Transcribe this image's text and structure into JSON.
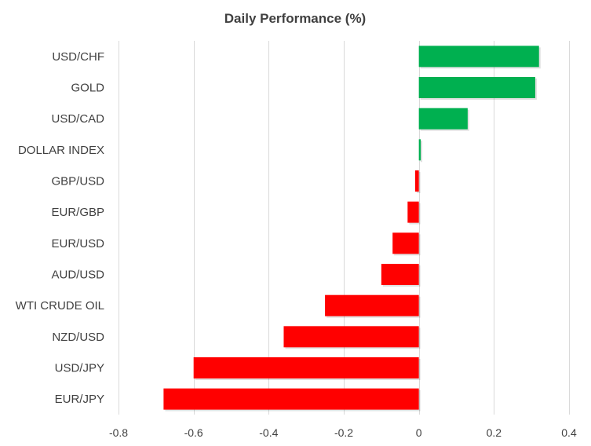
{
  "colors": {
    "positive": "#00b050",
    "negative": "#ff0000",
    "gridline": "#d9d9d9",
    "text": "#404040",
    "background": "#ffffff"
  },
  "chart_data": {
    "type": "bar",
    "orientation": "horizontal",
    "title": "Daily Performance  (%)",
    "xlabel": "",
    "ylabel": "",
    "xlim": [
      -0.8,
      0.4
    ],
    "xticks": [
      -0.8,
      -0.6,
      -0.4,
      -0.2,
      0,
      0.2,
      0.4
    ],
    "xtick_labels": [
      "-0.8",
      "-0.6",
      "-0.4",
      "-0.2",
      "0",
      "0.2",
      "0.4"
    ],
    "grid": true,
    "legend": "none",
    "categories": [
      "USD/CHF",
      "GOLD",
      "USD/CAD",
      "DOLLAR INDEX",
      "GBP/USD",
      "EUR/GBP",
      "EUR/USD",
      "AUD/USD",
      "WTI CRUDE OIL",
      "NZD/USD",
      "USD/JPY",
      "EUR/JPY"
    ],
    "values": [
      0.32,
      0.31,
      0.13,
      0.005,
      -0.01,
      -0.03,
      -0.07,
      -0.1,
      -0.25,
      -0.36,
      -0.6,
      -0.68
    ]
  }
}
